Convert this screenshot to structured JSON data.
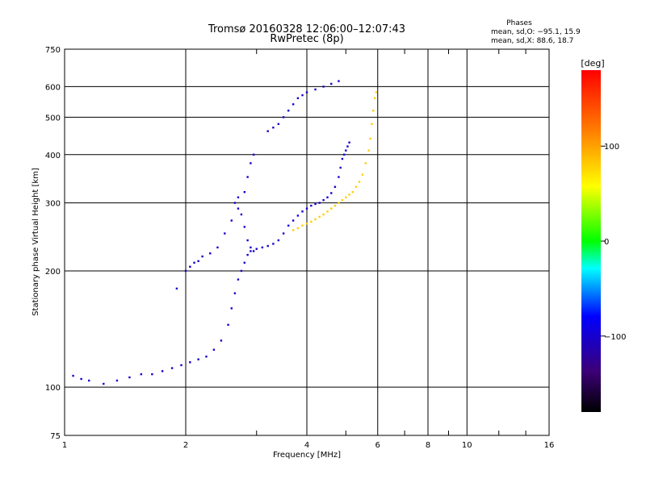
{
  "chart_data": {
    "type": "scatter",
    "title": "Tromsø 20160328 12:06:00–12:07:43",
    "subtitle": "RwPretec (8p)",
    "xlabel": "Frequency [MHz]",
    "ylabel": "Stationary phase Virtual Height [km]",
    "xscale": "log",
    "yscale": "log",
    "xlim": [
      1,
      16
    ],
    "ylim": [
      75,
      750
    ],
    "grid": true,
    "x_ticks": [
      1,
      2,
      4,
      6,
      8,
      10,
      16
    ],
    "x_tick_labels": [
      "1",
      "2",
      "4",
      "6",
      "8",
      "10",
      "16"
    ],
    "y_ticks": [
      75,
      100,
      200,
      300,
      400,
      500,
      600,
      750
    ],
    "y_tick_labels": [
      "75",
      "100",
      "200",
      "300",
      "400",
      "500",
      "600",
      "750"
    ],
    "phase_info": {
      "header": "Phases",
      "o_line": "mean, sd,O: −95.1, 15.9",
      "x_line": "mean, sd,X:  88.6, 18.7"
    },
    "colorbar": {
      "label": "[deg]",
      "min": -180,
      "max": 180,
      "ticks": [
        100,
        0,
        -100
      ],
      "tick_labels": [
        "100",
        "0",
        "−100"
      ]
    },
    "series": [
      {
        "mode": "O",
        "color_value": -100,
        "points": [
          [
            1.05,
            107
          ],
          [
            1.1,
            105
          ],
          [
            1.15,
            104
          ],
          [
            1.25,
            102
          ],
          [
            1.35,
            104
          ],
          [
            1.45,
            106
          ],
          [
            1.55,
            108
          ],
          [
            1.65,
            108
          ],
          [
            1.75,
            110
          ],
          [
            1.85,
            112
          ],
          [
            1.95,
            114
          ],
          [
            2.05,
            116
          ],
          [
            2.15,
            118
          ],
          [
            2.25,
            120
          ],
          [
            2.35,
            125
          ],
          [
            2.45,
            132
          ],
          [
            2.55,
            145
          ],
          [
            2.6,
            160
          ],
          [
            2.65,
            175
          ],
          [
            2.7,
            190
          ],
          [
            2.75,
            200
          ],
          [
            2.8,
            210
          ],
          [
            2.85,
            220
          ],
          [
            2.9,
            225
          ],
          [
            3.0,
            228
          ],
          [
            3.1,
            230
          ],
          [
            3.2,
            232
          ],
          [
            3.3,
            235
          ],
          [
            3.4,
            240
          ],
          [
            3.5,
            250
          ],
          [
            3.6,
            262
          ],
          [
            3.7,
            270
          ],
          [
            3.8,
            278
          ],
          [
            3.9,
            285
          ],
          [
            4.0,
            290
          ],
          [
            4.1,
            295
          ],
          [
            4.2,
            298
          ],
          [
            4.3,
            300
          ],
          [
            4.4,
            305
          ],
          [
            4.5,
            310
          ],
          [
            4.6,
            318
          ],
          [
            4.7,
            330
          ],
          [
            4.8,
            350
          ],
          [
            4.85,
            370
          ],
          [
            4.9,
            390
          ],
          [
            4.95,
            400
          ],
          [
            5.0,
            410
          ],
          [
            5.05,
            420
          ],
          [
            5.1,
            430
          ],
          [
            1.9,
            180
          ],
          [
            2.0,
            200
          ],
          [
            2.05,
            205
          ],
          [
            2.1,
            210
          ],
          [
            2.15,
            212
          ],
          [
            2.2,
            218
          ],
          [
            2.3,
            222
          ],
          [
            2.4,
            230
          ],
          [
            2.5,
            250
          ],
          [
            2.6,
            270
          ],
          [
            2.7,
            290
          ],
          [
            2.8,
            320
          ],
          [
            2.85,
            350
          ],
          [
            2.9,
            380
          ],
          [
            2.95,
            400
          ],
          [
            2.65,
            300
          ],
          [
            2.7,
            310
          ],
          [
            2.75,
            280
          ],
          [
            2.8,
            260
          ],
          [
            2.85,
            240
          ],
          [
            2.9,
            230
          ],
          [
            2.95,
            225
          ],
          [
            3.2,
            460
          ],
          [
            3.3,
            470
          ],
          [
            3.4,
            480
          ],
          [
            3.5,
            500
          ],
          [
            3.6,
            520
          ],
          [
            3.7,
            540
          ],
          [
            3.8,
            560
          ],
          [
            3.9,
            570
          ],
          [
            4.0,
            580
          ],
          [
            4.2,
            590
          ],
          [
            4.4,
            600
          ],
          [
            4.6,
            610
          ],
          [
            4.8,
            620
          ]
        ]
      },
      {
        "mode": "X",
        "color_value": 80,
        "points": [
          [
            3.7,
            255
          ],
          [
            3.8,
            258
          ],
          [
            3.9,
            262
          ],
          [
            4.0,
            265
          ],
          [
            4.1,
            268
          ],
          [
            4.2,
            272
          ],
          [
            4.3,
            276
          ],
          [
            4.4,
            280
          ],
          [
            4.5,
            285
          ],
          [
            4.6,
            290
          ],
          [
            4.7,
            295
          ],
          [
            4.8,
            300
          ],
          [
            4.9,
            305
          ],
          [
            5.0,
            310
          ],
          [
            5.1,
            315
          ],
          [
            5.2,
            320
          ],
          [
            5.3,
            330
          ],
          [
            5.4,
            340
          ],
          [
            5.5,
            355
          ],
          [
            5.6,
            380
          ],
          [
            5.7,
            410
          ],
          [
            5.75,
            440
          ],
          [
            5.8,
            480
          ],
          [
            5.85,
            520
          ],
          [
            5.9,
            560
          ],
          [
            5.95,
            580
          ]
        ]
      }
    ]
  }
}
